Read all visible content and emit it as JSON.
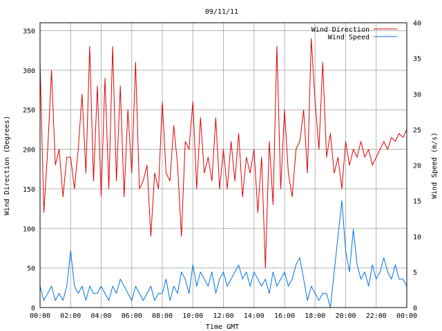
{
  "chart_data": {
    "type": "line",
    "title": "09/11/11",
    "xlabel": "Time GMT",
    "ylabel_left": "Wind Direction (Degrees)",
    "ylabel_right": "Wind Speed (m/s)",
    "x_ticks": [
      "00:00",
      "02:00",
      "04:00",
      "06:00",
      "08:00",
      "10:00",
      "12:00",
      "14:00",
      "16:00",
      "18:00",
      "20:00",
      "22:00",
      "00:00"
    ],
    "x_range_hours": [
      0,
      24
    ],
    "y_left_range": [
      0,
      360
    ],
    "y_left_ticks": [
      "0",
      "50",
      "100",
      "150",
      "200",
      "250",
      "300",
      "350"
    ],
    "y_right_range": [
      0,
      40
    ],
    "y_right_ticks": [
      "0",
      "5",
      "10",
      "15",
      "20",
      "25",
      "30",
      "35",
      "40"
    ],
    "grid": true,
    "legend_position": "top-right",
    "series": [
      {
        "name": "Wind Direction",
        "axis": "left",
        "color": "#e00000",
        "x": [
          0,
          0.25,
          0.5,
          0.75,
          1,
          1.25,
          1.5,
          1.75,
          2,
          2.25,
          2.5,
          2.75,
          3,
          3.25,
          3.5,
          3.75,
          4,
          4.25,
          4.5,
          4.75,
          5,
          5.25,
          5.5,
          5.75,
          6,
          6.25,
          6.5,
          6.75,
          7,
          7.25,
          7.5,
          7.75,
          8,
          8.25,
          8.5,
          8.75,
          9,
          9.25,
          9.5,
          9.75,
          10,
          10.25,
          10.5,
          10.75,
          11,
          11.25,
          11.5,
          11.75,
          12,
          12.25,
          12.5,
          12.75,
          13,
          13.25,
          13.5,
          13.75,
          14,
          14.25,
          14.5,
          14.75,
          15,
          15.25,
          15.5,
          15.75,
          16,
          16.25,
          16.5,
          16.75,
          17,
          17.25,
          17.5,
          17.75,
          18,
          18.25,
          18.5,
          18.75,
          19,
          19.25,
          19.5,
          19.75,
          20,
          20.25,
          20.5,
          20.75,
          21,
          21.25,
          21.5,
          21.75,
          22,
          22.25,
          22.5,
          22.75,
          23,
          23.25,
          23.5,
          23.75,
          24
        ],
        "values": [
          310,
          120,
          200,
          300,
          180,
          200,
          140,
          190,
          190,
          150,
          200,
          270,
          170,
          330,
          160,
          280,
          140,
          290,
          150,
          330,
          160,
          280,
          140,
          250,
          170,
          310,
          150,
          160,
          180,
          90,
          170,
          150,
          260,
          170,
          160,
          230,
          180,
          90,
          210,
          200,
          260,
          150,
          240,
          170,
          190,
          160,
          240,
          150,
          200,
          150,
          210,
          160,
          220,
          140,
          190,
          170,
          200,
          120,
          190,
          50,
          210,
          130,
          330,
          150,
          250,
          170,
          140,
          200,
          210,
          250,
          170,
          340,
          260,
          200,
          310,
          190,
          220,
          170,
          190,
          150,
          210,
          180,
          200,
          190,
          210,
          190,
          200,
          180,
          190,
          200,
          210,
          200,
          215,
          210,
          220,
          215,
          225
        ]
      },
      {
        "name": "Wind Speed",
        "axis": "right",
        "color": "#0070e0",
        "x": [
          0,
          0.25,
          0.5,
          0.75,
          1,
          1.25,
          1.5,
          1.75,
          2,
          2.25,
          2.5,
          2.75,
          3,
          3.25,
          3.5,
          3.75,
          4,
          4.25,
          4.5,
          4.75,
          5,
          5.25,
          5.5,
          5.75,
          6,
          6.25,
          6.5,
          6.75,
          7,
          7.25,
          7.5,
          7.75,
          8,
          8.25,
          8.5,
          8.75,
          9,
          9.25,
          9.5,
          9.75,
          10,
          10.25,
          10.5,
          10.75,
          11,
          11.25,
          11.5,
          11.75,
          12,
          12.25,
          12.5,
          12.75,
          13,
          13.25,
          13.5,
          13.75,
          14,
          14.25,
          14.5,
          14.75,
          15,
          15.25,
          15.5,
          15.75,
          16,
          16.25,
          16.5,
          16.75,
          17,
          17.25,
          17.5,
          17.75,
          18,
          18.25,
          18.5,
          18.75,
          19,
          19.25,
          19.5,
          19.75,
          20,
          20.25,
          20.5,
          20.75,
          21,
          21.25,
          21.5,
          21.75,
          22,
          22.25,
          22.5,
          22.75,
          23,
          23.25,
          23.5,
          23.75,
          24
        ],
        "values": [
          3,
          1,
          2,
          3,
          1,
          2,
          1,
          3,
          8,
          3,
          2,
          3,
          1,
          3,
          2,
          2,
          3,
          2,
          1,
          3,
          2,
          4,
          3,
          2,
          1,
          3,
          2,
          1,
          2,
          3,
          1,
          2,
          2,
          4,
          1,
          3,
          2,
          5,
          4,
          2,
          6,
          3,
          5,
          4,
          3,
          5,
          2,
          4,
          5,
          3,
          4,
          5,
          6,
          4,
          5,
          3,
          5,
          4,
          3,
          4,
          2,
          5,
          3,
          4,
          5,
          3,
          4,
          6,
          7,
          4,
          1,
          3,
          2,
          1,
          2,
          2,
          0,
          5,
          10,
          15,
          8,
          5,
          11,
          6,
          4,
          5,
          3,
          6,
          4,
          5,
          7,
          5,
          4,
          6,
          4,
          4,
          3
        ]
      }
    ]
  }
}
